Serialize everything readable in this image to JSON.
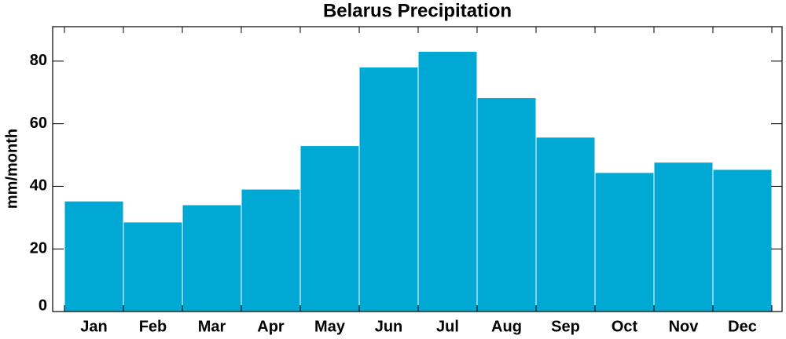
{
  "chart_data": {
    "type": "bar",
    "title": "Belarus Precipitation",
    "y_label": "mm/month",
    "categories": [
      "Jan",
      "Feb",
      "Mar",
      "Apr",
      "May",
      "Jun",
      "Jul",
      "Aug",
      "Sep",
      "Oct",
      "Nov",
      "Dec"
    ],
    "values": [
      35.3,
      28.6,
      34.1,
      39.1,
      53,
      78.1,
      83.1,
      68.3,
      55.7,
      44.4,
      47.7,
      45.4
    ],
    "color": "#00a9d3",
    "ylim": [
      0,
      91
    ],
    "yticks": [
      0,
      20,
      40,
      60,
      80
    ],
    "grid": false
  }
}
